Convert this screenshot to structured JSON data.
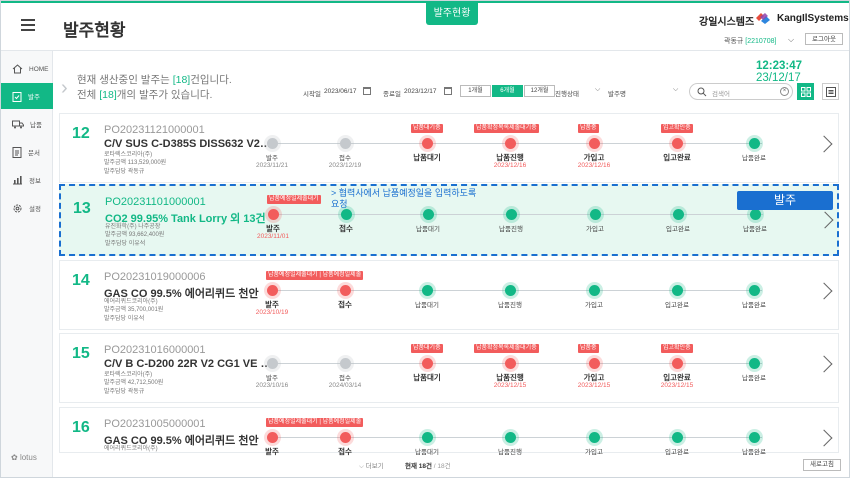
{
  "header": {
    "active_tab": "발주현황",
    "page_title": "발주현황",
    "brand_ko": "강일시스템즈",
    "brand_en": "KangIlSystems",
    "user_name": "곽동규",
    "user_id": "[2210708]",
    "logout": "로그아웃"
  },
  "sidebar": {
    "items": [
      {
        "label": "HOME",
        "icon": "home-icon"
      },
      {
        "label": "발주",
        "icon": "clipboard-icon"
      },
      {
        "label": "납품",
        "icon": "truck-icon"
      },
      {
        "label": "문서",
        "icon": "document-icon"
      },
      {
        "label": "정보",
        "icon": "chart-icon"
      },
      {
        "label": "설정",
        "icon": "gear-icon"
      }
    ],
    "logo": "lotus"
  },
  "clock": {
    "time": "12:23:47",
    "date": "23/12/17"
  },
  "summary": {
    "l1_pre": "현재 생산중인 발주는 ",
    "l1_num": "[18]",
    "l1_post": "건입니다.",
    "l2_pre": "전체 ",
    "l2_num": "[18]",
    "l2_post": "개의 발주가 있습니다."
  },
  "filters": {
    "start_label": "시작일",
    "start_value": "2023/06/17",
    "end_label": "종료일",
    "end_value": "2023/12/17",
    "periods": [
      "1개월",
      "6개월",
      "12개월"
    ],
    "status_label": "진행상태",
    "sort_label": "발주명",
    "search_placeholder": "검색어"
  },
  "orders": [
    {
      "num": "12",
      "po": "PO20231121000001",
      "name": "C/V SUS C-D385S DISS632 V2 N...",
      "meta": [
        "로타렉스코리아(주)",
        "발주금액 113,529,000원",
        "발주담당 곽동규"
      ],
      "stages": [
        {
          "label": "발주",
          "date": "2023/11/21",
          "state": "gray",
          "bold": false,
          "red": false,
          "tag": ""
        },
        {
          "label": "접수",
          "date": "2023/12/19",
          "state": "gray",
          "bold": false,
          "red": false,
          "tag": ""
        },
        {
          "label": "납품대기",
          "date": "",
          "state": "red",
          "bold": true,
          "red": false,
          "tag": "납품대기중"
        },
        {
          "label": "납품진행",
          "date": "2023/12/16",
          "state": "red",
          "bold": true,
          "red": true,
          "tag": "납품확정목록제출대기중"
        },
        {
          "label": "가입고",
          "date": "2023/12/16",
          "state": "red",
          "bold": true,
          "red": true,
          "tag": "납품중"
        },
        {
          "label": "입고완료",
          "date": "",
          "state": "red",
          "bold": true,
          "red": false,
          "tag": "입고확인중"
        },
        {
          "label": "납품완료",
          "date": "",
          "state": "green",
          "bold": false,
          "red": false,
          "tag": ""
        }
      ]
    },
    {
      "num": "13",
      "po": "PO20231101000001",
      "name": "CO2 99.95% Tank Lorry 외 13건",
      "meta": [
        "유진화학(주) 나주공장",
        "발주금액 93,662,400원",
        "발주담당 이유석"
      ],
      "tip_l1": "> 협력사에서 납품예정일을 입력하도록",
      "tip_l2": "요청",
      "action": "발주",
      "stages": [
        {
          "label": "발주",
          "date": "2023/11/01",
          "state": "red",
          "bold": true,
          "red": true,
          "tag": "납품예정일제출대기"
        },
        {
          "label": "접수",
          "date": "",
          "state": "green",
          "bold": true,
          "red": false,
          "tag": ""
        },
        {
          "label": "납품대기",
          "date": "",
          "state": "green",
          "bold": false,
          "red": false,
          "tag": ""
        },
        {
          "label": "납품진행",
          "date": "",
          "state": "green",
          "bold": false,
          "red": false,
          "tag": ""
        },
        {
          "label": "가입고",
          "date": "",
          "state": "green",
          "bold": false,
          "red": false,
          "tag": ""
        },
        {
          "label": "입고완료",
          "date": "",
          "state": "green",
          "bold": false,
          "red": false,
          "tag": ""
        },
        {
          "label": "납품완료",
          "date": "",
          "state": "green",
          "bold": false,
          "red": false,
          "tag": ""
        }
      ]
    },
    {
      "num": "14",
      "po": "PO20231019000006",
      "name": "GAS CO 99.5% 에어리퀴드 천안",
      "meta": [
        "에어리퀴드코리아(주)",
        "발주금액 35,700,001원",
        "발주담당 이유석"
      ],
      "stages": [
        {
          "label": "발주",
          "date": "2023/10/19",
          "state": "red",
          "bold": true,
          "red": true,
          "tag": "납품예정일제출대기 | 납품예정일제출"
        },
        {
          "label": "접수",
          "date": "",
          "state": "red",
          "bold": true,
          "red": false,
          "tag": ""
        },
        {
          "label": "납품대기",
          "date": "",
          "state": "green",
          "bold": false,
          "red": false,
          "tag": ""
        },
        {
          "label": "납품진행",
          "date": "",
          "state": "green",
          "bold": false,
          "red": false,
          "tag": ""
        },
        {
          "label": "가입고",
          "date": "",
          "state": "green",
          "bold": false,
          "red": false,
          "tag": ""
        },
        {
          "label": "입고완료",
          "date": "",
          "state": "green",
          "bold": false,
          "red": false,
          "tag": ""
        },
        {
          "label": "납품완료",
          "date": "",
          "state": "green",
          "bold": false,
          "red": false,
          "tag": ""
        }
      ]
    },
    {
      "num": "15",
      "po": "PO20231016000001",
      "name": "C/V B C-D200 22R V2 CG1 VE LG ...",
      "meta": [
        "로타렉스코리아(주)",
        "발주금액 42,712,500원",
        "발주담당 곽동규"
      ],
      "stages": [
        {
          "label": "발주",
          "date": "2023/10/16",
          "state": "gray",
          "bold": false,
          "red": false,
          "tag": ""
        },
        {
          "label": "접수",
          "date": "2024/03/14",
          "state": "gray",
          "bold": false,
          "red": false,
          "tag": ""
        },
        {
          "label": "납품대기",
          "date": "",
          "state": "red",
          "bold": true,
          "red": false,
          "tag": "납품대기중"
        },
        {
          "label": "납품진행",
          "date": "2023/12/15",
          "state": "red",
          "bold": true,
          "red": true,
          "tag": "납품확정목록제출대기중"
        },
        {
          "label": "가입고",
          "date": "2023/12/15",
          "state": "red",
          "bold": true,
          "red": true,
          "tag": "납품중"
        },
        {
          "label": "입고완료",
          "date": "2023/12/15",
          "state": "red",
          "bold": true,
          "red": true,
          "tag": "입고확인중"
        },
        {
          "label": "납품완료",
          "date": "",
          "state": "green",
          "bold": false,
          "red": false,
          "tag": ""
        }
      ]
    },
    {
      "num": "16",
      "po": "PO20231005000001",
      "name": "GAS CO 99.5% 에어리퀴드 천안",
      "meta": [
        "에어리퀴드코리아(주)"
      ],
      "stages": [
        {
          "label": "발주",
          "date": "",
          "state": "red",
          "bold": true,
          "red": false,
          "tag": "납품예정일제출대기 | 납품예정일제출"
        },
        {
          "label": "접수",
          "date": "",
          "state": "red",
          "bold": true,
          "red": false,
          "tag": ""
        },
        {
          "label": "납품대기",
          "date": "",
          "state": "green",
          "bold": false,
          "red": false,
          "tag": ""
        },
        {
          "label": "납품진행",
          "date": "",
          "state": "green",
          "bold": false,
          "red": false,
          "tag": ""
        },
        {
          "label": "가입고",
          "date": "",
          "state": "green",
          "bold": false,
          "red": false,
          "tag": ""
        },
        {
          "label": "입고완료",
          "date": "",
          "state": "green",
          "bold": false,
          "red": false,
          "tag": ""
        },
        {
          "label": "납품완료",
          "date": "",
          "state": "green",
          "bold": false,
          "red": false,
          "tag": ""
        }
      ]
    }
  ],
  "footer": {
    "more": "더보기",
    "count_current": "현재 18건",
    "count_total": " / 18건",
    "refresh": "새로고침"
  },
  "colors": {
    "accent": "#12b886",
    "alert": "#f25c5c",
    "highlight": "#1a6fd0"
  }
}
